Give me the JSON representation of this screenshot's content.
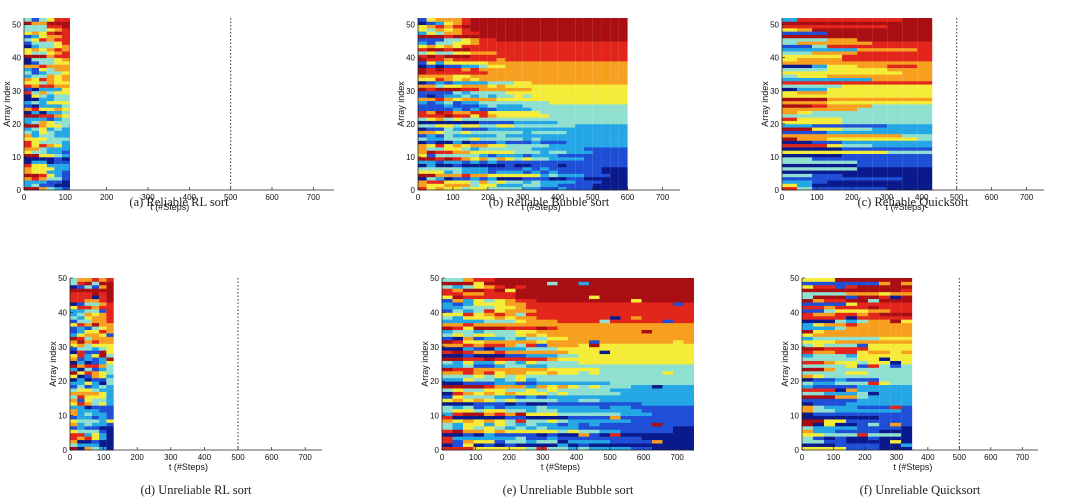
{
  "chart_data": [
    {
      "type": "heatmap",
      "caption": "(a) Reliable RL sort",
      "xlabel": "t (#Steps)",
      "ylabel": "Array index",
      "xlim": [
        0,
        750
      ],
      "ylim": [
        0,
        52
      ],
      "x_ticks": [
        0,
        100,
        200,
        300,
        400,
        500,
        600,
        700
      ],
      "y_ticks": [
        0,
        10,
        20,
        30,
        40,
        50
      ],
      "data_end_step": 110,
      "reference_line_x": 500,
      "algorithm": "rl",
      "reliable": true
    },
    {
      "type": "heatmap",
      "caption": "(b) Reliable Bubble sort",
      "xlabel": "t (#Steps)",
      "ylabel": "Array index",
      "xlim": [
        0,
        750
      ],
      "ylim": [
        0,
        52
      ],
      "x_ticks": [
        0,
        100,
        200,
        300,
        400,
        500,
        600,
        700
      ],
      "y_ticks": [
        0,
        10,
        20,
        30,
        40,
        50
      ],
      "data_end_step": 600,
      "reference_line_x": null,
      "algorithm": "bubble",
      "reliable": true
    },
    {
      "type": "heatmap",
      "caption": "(c) Reliable Quicksort",
      "xlabel": "t (#Steps)",
      "ylabel": "Array index",
      "xlim": [
        0,
        750
      ],
      "ylim": [
        0,
        52
      ],
      "x_ticks": [
        0,
        100,
        200,
        300,
        400,
        500,
        600,
        700
      ],
      "y_ticks": [
        0,
        10,
        20,
        30,
        40,
        50
      ],
      "data_end_step": 430,
      "reference_line_x": 500,
      "algorithm": "quick",
      "reliable": true
    },
    {
      "type": "heatmap",
      "caption": "(d) Unreliable RL sort",
      "xlabel": "t (#Steps)",
      "ylabel": "Array index",
      "xlim": [
        0,
        750
      ],
      "ylim": [
        0,
        50
      ],
      "x_ticks": [
        0,
        100,
        200,
        300,
        400,
        500,
        600,
        700
      ],
      "y_ticks": [
        0,
        10,
        20,
        30,
        40,
        50
      ],
      "data_end_step": 130,
      "reference_line_x": 500,
      "algorithm": "rl",
      "reliable": false
    },
    {
      "type": "heatmap",
      "caption": "(e) Unreliable Bubble sort",
      "xlabel": "t (#Steps)",
      "ylabel": "Array index",
      "xlim": [
        0,
        750
      ],
      "ylim": [
        0,
        50
      ],
      "x_ticks": [
        0,
        100,
        200,
        300,
        400,
        500,
        600,
        700
      ],
      "y_ticks": [
        0,
        10,
        20,
        30,
        40,
        50
      ],
      "data_end_step": 750,
      "reference_line_x": null,
      "algorithm": "bubble",
      "reliable": false
    },
    {
      "type": "heatmap",
      "caption": "(f) Unreliable Quicksort",
      "xlabel": "t (#Steps)",
      "ylabel": "Array index",
      "xlim": [
        0,
        750
      ],
      "ylim": [
        0,
        50
      ],
      "x_ticks": [
        0,
        100,
        200,
        300,
        400,
        500,
        600,
        700
      ],
      "y_ticks": [
        0,
        10,
        20,
        30,
        40,
        50
      ],
      "data_end_step": 350,
      "reference_line_x": 500,
      "algorithm": "quick",
      "reliable": false
    }
  ],
  "colormap": [
    "#0a1a8c",
    "#1f4fd6",
    "#25a7e6",
    "#8fe0d0",
    "#f5ec3a",
    "#f7a020",
    "#e2261c",
    "#a80e12"
  ]
}
